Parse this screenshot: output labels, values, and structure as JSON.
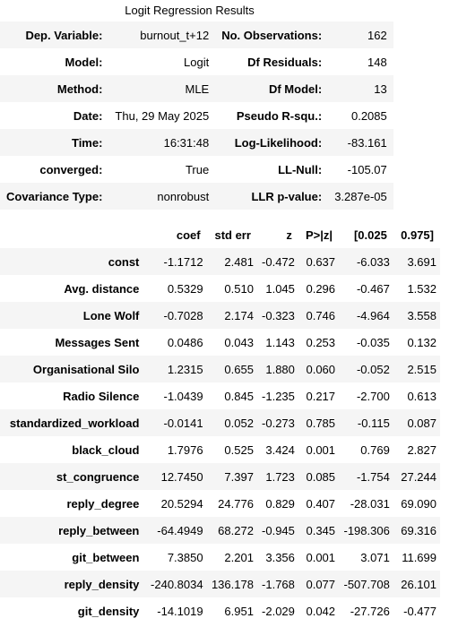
{
  "caption": "Logit Regression Results",
  "summary": [
    [
      "Dep. Variable:",
      "burnout_t+12",
      "No. Observations:",
      "162"
    ],
    [
      "Model:",
      "Logit",
      "Df Residuals:",
      "148"
    ],
    [
      "Method:",
      "MLE",
      "Df Model:",
      "13"
    ],
    [
      "Date:",
      "Thu, 29 May 2025",
      "Pseudo R-squ.:",
      "0.2085"
    ],
    [
      "Time:",
      "16:31:48",
      "Log-Likelihood:",
      "-83.161"
    ],
    [
      "converged:",
      "True",
      "LL-Null:",
      "-105.07"
    ],
    [
      "Covariance Type:",
      "nonrobust",
      "LLR p-value:",
      "3.287e-05"
    ]
  ],
  "coef_headers": [
    "",
    "coef",
    "std err",
    "z",
    "P>|z|",
    "[0.025",
    "0.975]"
  ],
  "coef_rows": [
    [
      "const",
      "-1.1712",
      "2.481",
      "-0.472",
      "0.637",
      "-6.033",
      "3.691"
    ],
    [
      "Avg. distance",
      "0.5329",
      "0.510",
      "1.045",
      "0.296",
      "-0.467",
      "1.532"
    ],
    [
      "Lone Wolf",
      "-0.7028",
      "2.174",
      "-0.323",
      "0.746",
      "-4.964",
      "3.558"
    ],
    [
      "Messages Sent",
      "0.0486",
      "0.043",
      "1.143",
      "0.253",
      "-0.035",
      "0.132"
    ],
    [
      "Organisational Silo",
      "1.2315",
      "0.655",
      "1.880",
      "0.060",
      "-0.052",
      "2.515"
    ],
    [
      "Radio Silence",
      "-1.0439",
      "0.845",
      "-1.235",
      "0.217",
      "-2.700",
      "0.613"
    ],
    [
      "standardized_workload",
      "-0.0141",
      "0.052",
      "-0.273",
      "0.785",
      "-0.115",
      "0.087"
    ],
    [
      "black_cloud",
      "1.7976",
      "0.525",
      "3.424",
      "0.001",
      "0.769",
      "2.827"
    ],
    [
      "st_congruence",
      "12.7450",
      "7.397",
      "1.723",
      "0.085",
      "-1.754",
      "27.244"
    ],
    [
      "reply_degree",
      "20.5294",
      "24.776",
      "0.829",
      "0.407",
      "-28.031",
      "69.090"
    ],
    [
      "reply_between",
      "-64.4949",
      "68.272",
      "-0.945",
      "0.345",
      "-198.306",
      "69.316"
    ],
    [
      "git_between",
      "7.3850",
      "2.201",
      "3.356",
      "0.001",
      "3.071",
      "11.699"
    ],
    [
      "reply_density",
      "-240.8034",
      "136.178",
      "-1.768",
      "0.077",
      "-507.708",
      "26.101"
    ],
    [
      "git_density",
      "-14.1019",
      "6.951",
      "-2.029",
      "0.042",
      "-27.726",
      "-0.477"
    ]
  ]
}
